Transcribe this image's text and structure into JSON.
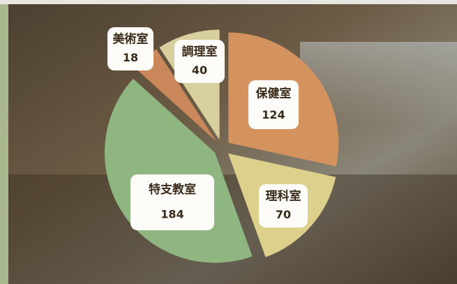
{
  "chart_data": {
    "type": "pie",
    "categories": [
      "保健室",
      "理科室",
      "特支教室",
      "美術室",
      "調理室"
    ],
    "values": [
      124,
      70,
      184,
      18,
      40
    ],
    "colors": [
      "#d4935e",
      "#ddd08c",
      "#8fb680",
      "#c9875a",
      "#d8cf9e"
    ]
  }
}
